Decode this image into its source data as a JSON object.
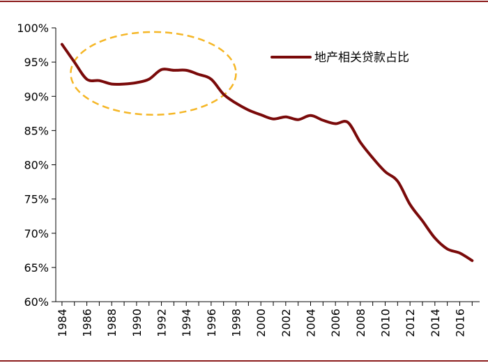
{
  "chart_data": {
    "type": "line",
    "title": "",
    "xlabel": "",
    "ylabel": "",
    "ylim": [
      60,
      100
    ],
    "y_ticks": [
      "60%",
      "65%",
      "70%",
      "75%",
      "80%",
      "85%",
      "90%",
      "95%",
      "100%"
    ],
    "y_tick_values": [
      60,
      65,
      70,
      75,
      80,
      85,
      90,
      95,
      100
    ],
    "x_tick_labels": [
      "1984",
      "1986",
      "1988",
      "1990",
      "1992",
      "1994",
      "1996",
      "1998",
      "2000",
      "2002",
      "2004",
      "2006",
      "2008",
      "2010",
      "2012",
      "2014",
      "2016"
    ],
    "series": [
      {
        "name": "地产相关贷款占比",
        "color": "#7a0a0a",
        "x": [
          1984,
          1985,
          1986,
          1987,
          1988,
          1989,
          1990,
          1991,
          1992,
          1993,
          1994,
          1995,
          1996,
          1997,
          1998,
          1999,
          2000,
          2001,
          2002,
          2003,
          2004,
          2005,
          2006,
          2007,
          2008,
          2009,
          2010,
          2011,
          2012,
          2013,
          2014,
          2015,
          2016,
          2017
        ],
        "values": [
          97.6,
          95.0,
          92.5,
          92.3,
          91.8,
          91.8,
          92.0,
          92.5,
          93.9,
          93.8,
          93.8,
          93.2,
          92.5,
          90.3,
          89.0,
          88.0,
          87.3,
          86.7,
          87.0,
          86.6,
          87.2,
          86.5,
          86.0,
          86.2,
          83.3,
          81.0,
          79.0,
          77.6,
          74.2,
          71.8,
          69.3,
          67.7,
          67.1,
          66.0
        ]
      }
    ],
    "legend": {
      "position": "top-right"
    },
    "annotation": {
      "type": "dashed-ellipse",
      "color": "#f5b625",
      "x_range": [
        1984.7,
        1998.0
      ],
      "y_range": [
        87.3,
        99.4
      ]
    },
    "axis_color": "#000000",
    "border_color": "#8b1a1a"
  }
}
